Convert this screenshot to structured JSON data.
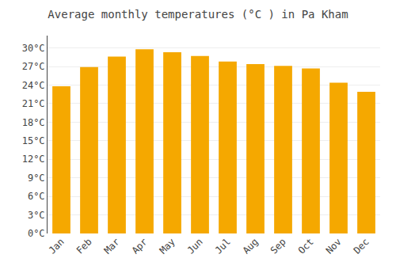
{
  "chart_data": {
    "type": "bar",
    "title": "Average monthly temperatures (°C ) in Pa Kham",
    "categories": [
      "Jan",
      "Feb",
      "Mar",
      "Apr",
      "May",
      "Jun",
      "Jul",
      "Aug",
      "Sep",
      "Oct",
      "Nov",
      "Dec"
    ],
    "values": [
      23.8,
      26.9,
      28.6,
      29.8,
      29.3,
      28.7,
      27.8,
      27.4,
      27.1,
      26.7,
      24.4,
      22.9
    ],
    "color": "#F5A800",
    "ylim": [
      0,
      32
    ],
    "yticks": [
      {
        "value": 0,
        "label": "0°C"
      },
      {
        "value": 3,
        "label": "3°C"
      },
      {
        "value": 6,
        "label": "6°C"
      },
      {
        "value": 9,
        "label": "9°C"
      },
      {
        "value": 12,
        "label": "12°C"
      },
      {
        "value": 15,
        "label": "15°C"
      },
      {
        "value": 18,
        "label": "18°C"
      },
      {
        "value": 21,
        "label": "21°C"
      },
      {
        "value": 24,
        "label": "24°C"
      },
      {
        "value": 27,
        "label": "27°C"
      },
      {
        "value": 30,
        "label": "30°C"
      }
    ],
    "grid": true
  }
}
